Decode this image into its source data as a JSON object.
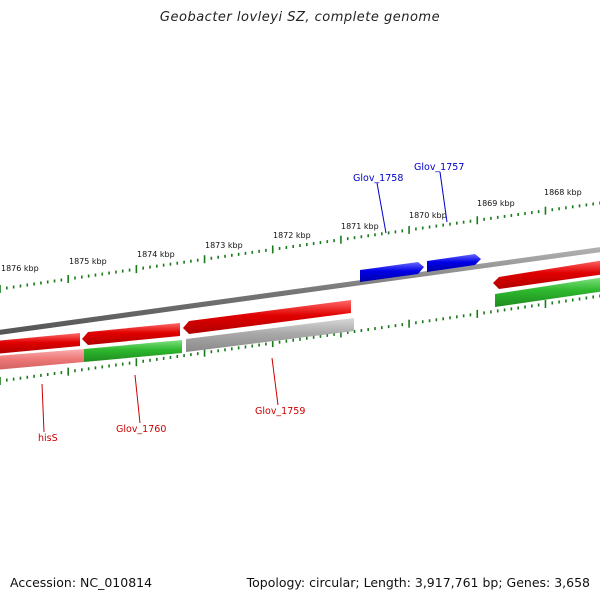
{
  "title": "Geobacter lovleyi SZ, complete genome",
  "footer": {
    "accession": "Accession: NC_010814",
    "summary": "Topology: circular; Length: 3,917,761 bp; Genes: 3,658"
  },
  "colors": {
    "red": "#e00000",
    "green": "#2eb82e",
    "blue": "#0000e6",
    "grey": "#a9a9a9",
    "pink": "#f07a7a",
    "tick": "#1a7a1a",
    "backbone": "#808080",
    "label_red": "#cc0000",
    "label_blue": "#0000cc"
  },
  "ruler": {
    "outer_labels": [
      "1876 kbp",
      "1875 kbp",
      "1874 kbp",
      "1873 kbp",
      "1872 kbp",
      "1871 kbp",
      "1870 kbp",
      "1869 kbp",
      "1868 kbp"
    ]
  },
  "genes": {
    "upper": [
      {
        "name": "Glov_1758",
        "color": "blue"
      },
      {
        "name": "Glov_1757",
        "color": "blue"
      }
    ],
    "lower": [
      {
        "name": "hisS",
        "color": "pink"
      },
      {
        "name": "Glov_1760",
        "color": "green"
      },
      {
        "name": "Glov_1759",
        "color": "grey"
      }
    ]
  }
}
